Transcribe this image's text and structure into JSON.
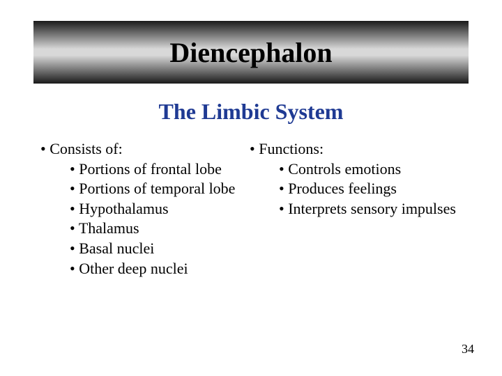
{
  "banner": {
    "title": "Diencephalon",
    "title_color": "#000000",
    "title_fontsize": 40,
    "gradient_stops": [
      "#1a1a1a",
      "#d8d8d8",
      "#d8d8d8",
      "#1a1a1a"
    ]
  },
  "subtitle": {
    "text": "The Limbic System",
    "color": "#1f3a93",
    "fontsize": 32
  },
  "body": {
    "bullet_char": "•",
    "text_color": "#000000",
    "fontsize": 22,
    "left": {
      "heading": "Consists of:",
      "items": [
        "Portions of frontal lobe",
        "Portions of temporal lobe",
        "Hypothalamus",
        "Thalamus",
        "Basal nuclei",
        "Other deep nuclei"
      ]
    },
    "right": {
      "heading": "Functions:",
      "items": [
        "Controls emotions",
        "Produces feelings",
        "Interprets sensory impulses"
      ]
    }
  },
  "page_number": "34",
  "background_color": "#ffffff"
}
